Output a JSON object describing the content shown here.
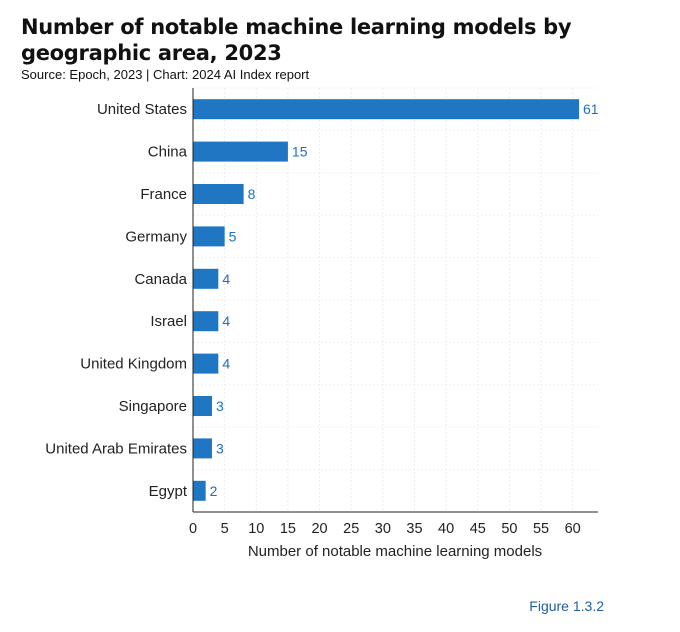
{
  "header": {
    "title": "Number of notable machine learning models by geographic area, 2023",
    "source": "Source: Epoch, 2023 | Chart: 2024 AI Index report"
  },
  "figure_label": "Figure 1.3.2",
  "chart_data": {
    "type": "bar",
    "orientation": "horizontal",
    "title": "Number of notable machine learning models by geographic area, 2023",
    "xlabel": "Number of notable machine learning models",
    "ylabel": "",
    "categories": [
      "United States",
      "China",
      "France",
      "Germany",
      "Canada",
      "Israel",
      "United Kingdom",
      "Singapore",
      "United Arab Emirates",
      "Egypt"
    ],
    "values": [
      61,
      15,
      8,
      5,
      4,
      4,
      4,
      3,
      3,
      2
    ],
    "xlim": [
      0,
      64
    ],
    "xticks": [
      0,
      5,
      10,
      15,
      20,
      25,
      30,
      35,
      40,
      45,
      50,
      55,
      60
    ],
    "grid": true,
    "data_labels": true,
    "bar_color": "#1f77c4",
    "label_color": "#1f6fbf"
  }
}
